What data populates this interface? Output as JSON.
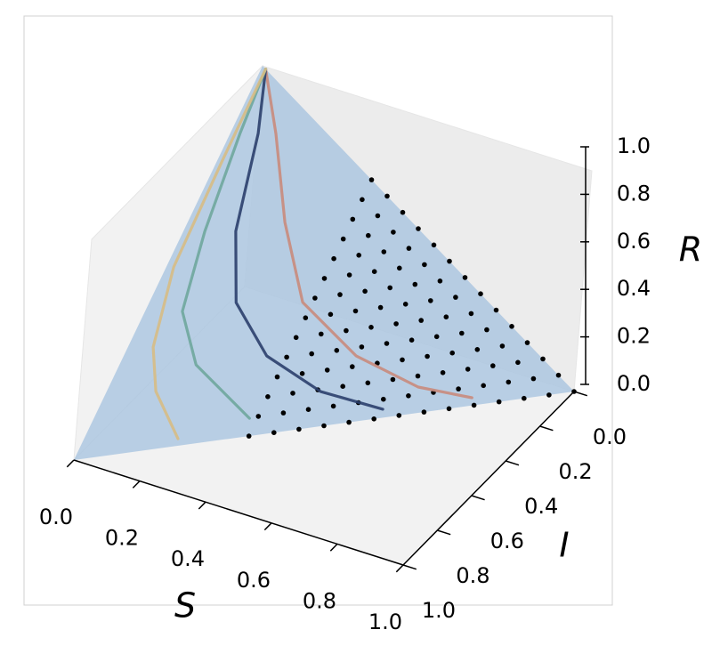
{
  "chart_data": {
    "type": "line3d",
    "xlabel": "S",
    "ylabel": "I",
    "zlabel": "R",
    "xlim": [
      0,
      1
    ],
    "ylim": [
      0,
      1
    ],
    "zlim": [
      0,
      1
    ],
    "xticks": [
      {
        "value": 0,
        "label": "0.0"
      },
      {
        "value": 0.2,
        "label": "0.2"
      },
      {
        "value": 0.4,
        "label": "0.4"
      },
      {
        "value": 0.6,
        "label": "0.6"
      },
      {
        "value": 0.8,
        "label": "0.8"
      },
      {
        "value": 1,
        "label": "1.0"
      }
    ],
    "yticks": [
      {
        "value": 0,
        "label": "0.0"
      },
      {
        "value": 0.2,
        "label": "0.2"
      },
      {
        "value": 0.4,
        "label": "0.4"
      },
      {
        "value": 0.6,
        "label": "0.6"
      },
      {
        "value": 0.8,
        "label": "0.8"
      },
      {
        "value": 1,
        "label": "1.0"
      }
    ],
    "zticks": [
      {
        "value": 0,
        "label": "0.0"
      },
      {
        "value": 0.2,
        "label": "0.2"
      },
      {
        "value": 0.4,
        "label": "0.4"
      },
      {
        "value": 0.6,
        "label": "0.6"
      },
      {
        "value": 0.8,
        "label": "0.8"
      },
      {
        "value": 1,
        "label": "1.0"
      }
    ],
    "series": [
      {
        "color": "#c98b7c",
        "x": [
          0.01,
          0.098,
          0.208,
          0.328,
          0.497,
          0.662,
          0.788
        ],
        "y": [
          0.0,
          0.091,
          0.225,
          0.329,
          0.325,
          0.268,
          0.191
        ],
        "z": [
          0.99,
          0.811,
          0.567,
          0.343,
          0.178,
          0.07,
          0.021
        ]
      },
      {
        "color": "#2b3f6c",
        "x": [
          0.01,
          0.06,
          0.112,
          0.186,
          0.306,
          0.458,
          0.609
        ],
        "y": [
          0.0,
          0.122,
          0.327,
          0.447,
          0.483,
          0.448,
          0.368
        ],
        "z": [
          0.99,
          0.818,
          0.561,
          0.367,
          0.211,
          0.094,
          0.023
        ]
      },
      {
        "color": "#6fa79c",
        "x": [
          0.01,
          0.021,
          0.046,
          0.08,
          0.164,
          0.333
        ],
        "y": [
          0.0,
          0.154,
          0.382,
          0.557,
          0.623,
          0.619
        ],
        "z": [
          0.99,
          0.825,
          0.572,
          0.363,
          0.213,
          0.048
        ]
      },
      {
        "color": "#d7bd84",
        "x": [
          0.01,
          0.011,
          0.016,
          0.054,
          0.105,
          0.201
        ],
        "y": [
          0.0,
          0.23,
          0.497,
          0.669,
          0.739,
          0.78
        ],
        "z": [
          0.99,
          0.759,
          0.487,
          0.277,
          0.156,
          0.019
        ]
      }
    ],
    "points": {
      "color": "#000000",
      "x": [
        0.35,
        0.35,
        0.35,
        0.35,
        0.35,
        0.35,
        0.35,
        0.35,
        0.35,
        0.35,
        0.35,
        0.35,
        0.35,
        0.35,
        0.4,
        0.4,
        0.4,
        0.4,
        0.4,
        0.4,
        0.4,
        0.4,
        0.4,
        0.4,
        0.4,
        0.4,
        0.4,
        0.45,
        0.45,
        0.45,
        0.45,
        0.45,
        0.45,
        0.45,
        0.45,
        0.45,
        0.45,
        0.45,
        0.45,
        0.5,
        0.5,
        0.5,
        0.5,
        0.5,
        0.5,
        0.5,
        0.5,
        0.5,
        0.5,
        0.5,
        0.55,
        0.55,
        0.55,
        0.55,
        0.55,
        0.55,
        0.55,
        0.55,
        0.55,
        0.55,
        0.6,
        0.6,
        0.6,
        0.6,
        0.6,
        0.6,
        0.6,
        0.6,
        0.6,
        0.65,
        0.65,
        0.65,
        0.65,
        0.65,
        0.65,
        0.65,
        0.65,
        0.7,
        0.7,
        0.7,
        0.7,
        0.7,
        0.7,
        0.7,
        0.75,
        0.75,
        0.75,
        0.75,
        0.75,
        0.75,
        0.8,
        0.8,
        0.8,
        0.8,
        0.8,
        0.85,
        0.85,
        0.85,
        0.85,
        0.9,
        0.9,
        0.9,
        0.95,
        0.95,
        1.0
      ],
      "y": [
        0,
        0.05,
        0.1,
        0.15,
        0.2,
        0.25,
        0.3,
        0.35,
        0.4,
        0.45,
        0.5,
        0.55,
        0.6,
        0.65,
        0,
        0.05,
        0.1,
        0.15,
        0.2,
        0.25,
        0.3,
        0.35,
        0.4,
        0.45,
        0.5,
        0.55,
        0.6,
        0,
        0.05,
        0.1,
        0.15,
        0.2,
        0.25,
        0.3,
        0.35,
        0.4,
        0.45,
        0.5,
        0.55,
        0,
        0.05,
        0.1,
        0.15,
        0.2,
        0.25,
        0.3,
        0.35,
        0.4,
        0.45,
        0.5,
        0,
        0.05,
        0.1,
        0.15,
        0.2,
        0.25,
        0.3,
        0.35,
        0.4,
        0.45,
        0,
        0.05,
        0.1,
        0.15,
        0.2,
        0.25,
        0.3,
        0.35,
        0.4,
        0,
        0.05,
        0.1,
        0.15,
        0.2,
        0.25,
        0.3,
        0.35,
        0,
        0.05,
        0.1,
        0.15,
        0.2,
        0.25,
        0.3,
        0,
        0.05,
        0.1,
        0.15,
        0.2,
        0.25,
        0,
        0.05,
        0.1,
        0.15,
        0.2,
        0,
        0.05,
        0.1,
        0.15,
        0,
        0.05,
        0.1,
        0,
        0.05,
        0
      ],
      "z": [
        0.65,
        0.6,
        0.55,
        0.5,
        0.45,
        0.4,
        0.35,
        0.3,
        0.25,
        0.2,
        0.15,
        0.1,
        0.05,
        0,
        0.6,
        0.55,
        0.5,
        0.45,
        0.4,
        0.35,
        0.3,
        0.25,
        0.2,
        0.15,
        0.1,
        0.05,
        0,
        0.55,
        0.5,
        0.45,
        0.4,
        0.35,
        0.3,
        0.25,
        0.2,
        0.15,
        0.1,
        0.05,
        0,
        0.5,
        0.45,
        0.4,
        0.35,
        0.3,
        0.25,
        0.2,
        0.15,
        0.1,
        0.05,
        0,
        0.45,
        0.4,
        0.35,
        0.3,
        0.25,
        0.2,
        0.15,
        0.1,
        0.05,
        0,
        0.4,
        0.35,
        0.3,
        0.25,
        0.2,
        0.15,
        0.1,
        0.05,
        0,
        0.35,
        0.3,
        0.25,
        0.2,
        0.15,
        0.1,
        0.05,
        0,
        0.3,
        0.25,
        0.2,
        0.15,
        0.1,
        0.05,
        0,
        0.25,
        0.2,
        0.15,
        0.1,
        0.05,
        0,
        0.2,
        0.15,
        0.1,
        0.05,
        0,
        0.15,
        0.1,
        0.05,
        0,
        0.1,
        0.05,
        0,
        0.05,
        0,
        0
      ]
    }
  }
}
